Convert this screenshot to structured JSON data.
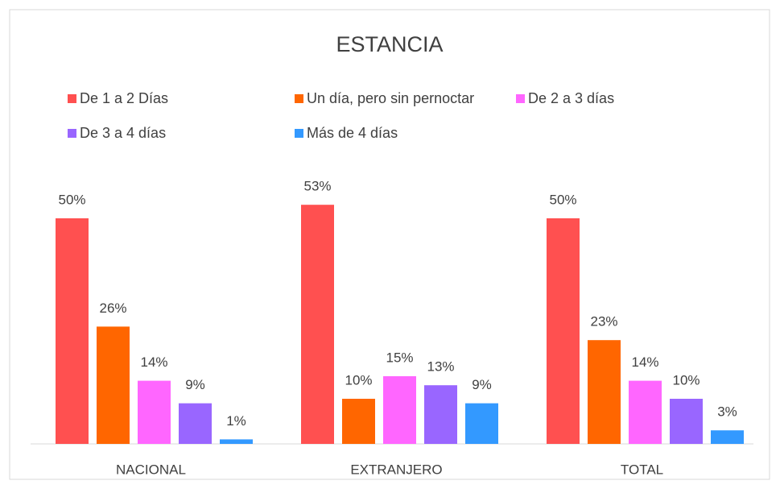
{
  "chart_data": {
    "type": "bar",
    "title": "ESTANCIA",
    "categories": [
      "NACIONAL",
      "EXTRANJERO",
      "TOTAL"
    ],
    "series": [
      {
        "name": "De 1 a 2 Días",
        "color": "#ff5050",
        "values": [
          50,
          53,
          50
        ],
        "value_labels": [
          "50%",
          "53%",
          "50%"
        ]
      },
      {
        "name": "Un día, pero sin pernoctar",
        "color": "#ff6600",
        "values": [
          26,
          10,
          23
        ],
        "value_labels": [
          "26%",
          "10%",
          "23%"
        ]
      },
      {
        "name": "De 2 a 3 días",
        "color": "#ff66ff",
        "values": [
          14,
          15,
          14
        ],
        "value_labels": [
          "14%",
          "15%",
          "14%"
        ]
      },
      {
        "name": "De 3 a 4 días",
        "color": "#9966ff",
        "values": [
          9,
          13,
          10
        ],
        "value_labels": [
          "9%",
          "13%",
          "10%"
        ]
      },
      {
        "name": "Más de 4 días",
        "color": "#3399ff",
        "values": [
          1,
          9,
          3
        ],
        "value_labels": [
          "1%",
          "9%",
          "3%"
        ]
      }
    ],
    "legend": "top"
  }
}
